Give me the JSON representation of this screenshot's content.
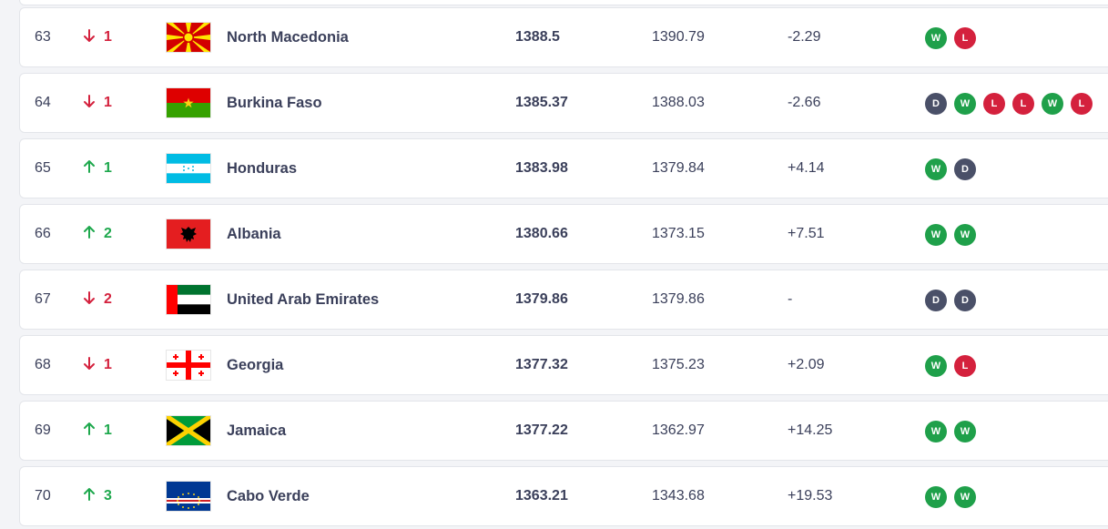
{
  "colors": {
    "up": "#1ea84d",
    "down": "#d4213d",
    "win": "#1fa04a",
    "loss": "#d4213d",
    "draw": "#4a5068"
  },
  "rankings": [
    {
      "rank": "63",
      "direction": "down",
      "change": "1",
      "flag": "north-macedonia-flag-icon",
      "team": "North Macedonia",
      "points": "1388.5",
      "previous_points": "1390.79",
      "difference": "-2.29",
      "form": [
        "W",
        "L"
      ]
    },
    {
      "rank": "64",
      "direction": "down",
      "change": "1",
      "flag": "burkina-faso-flag-icon",
      "team": "Burkina Faso",
      "points": "1385.37",
      "previous_points": "1388.03",
      "difference": "-2.66",
      "form": [
        "D",
        "W",
        "L",
        "L",
        "W",
        "L"
      ]
    },
    {
      "rank": "65",
      "direction": "up",
      "change": "1",
      "flag": "honduras-flag-icon",
      "team": "Honduras",
      "points": "1383.98",
      "previous_points": "1379.84",
      "difference": "+4.14",
      "form": [
        "W",
        "D"
      ]
    },
    {
      "rank": "66",
      "direction": "up",
      "change": "2",
      "flag": "albania-flag-icon",
      "team": "Albania",
      "points": "1380.66",
      "previous_points": "1373.15",
      "difference": "+7.51",
      "form": [
        "W",
        "W"
      ]
    },
    {
      "rank": "67",
      "direction": "down",
      "change": "2",
      "flag": "uae-flag-icon",
      "team": "United Arab Emirates",
      "points": "1379.86",
      "previous_points": "1379.86",
      "difference": "-",
      "form": [
        "D",
        "D"
      ]
    },
    {
      "rank": "68",
      "direction": "down",
      "change": "1",
      "flag": "georgia-flag-icon",
      "team": "Georgia",
      "points": "1377.32",
      "previous_points": "1375.23",
      "difference": "+2.09",
      "form": [
        "W",
        "L"
      ]
    },
    {
      "rank": "69",
      "direction": "up",
      "change": "1",
      "flag": "jamaica-flag-icon",
      "team": "Jamaica",
      "points": "1377.22",
      "previous_points": "1362.97",
      "difference": "+14.25",
      "form": [
        "W",
        "W"
      ]
    },
    {
      "rank": "70",
      "direction": "up",
      "change": "3",
      "flag": "cabo-verde-flag-icon",
      "team": "Cabo Verde",
      "points": "1363.21",
      "previous_points": "1343.68",
      "difference": "+19.53",
      "form": [
        "W",
        "W"
      ]
    }
  ]
}
